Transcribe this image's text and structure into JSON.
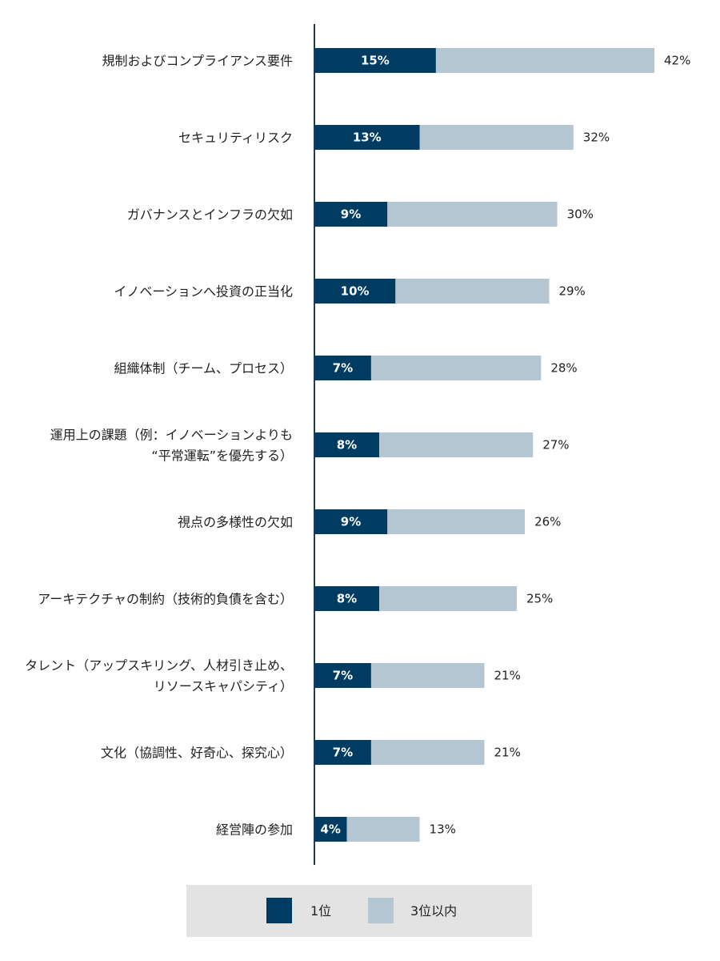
{
  "chart_data": {
    "type": "bar",
    "orientation": "horizontal",
    "categories": [
      [
        "規制およびコンプライアンス要件"
      ],
      [
        "セキュリティリスク"
      ],
      [
        "ガバナンスとインフラの欠如"
      ],
      [
        "イノベーションへ投資の正当化"
      ],
      [
        "組織体制（チーム、プロセス）"
      ],
      [
        "運用上の課題（例：イノベーションよりも",
        "“平常運転”を優先する）"
      ],
      [
        "視点の多様性の欠如"
      ],
      [
        "アーキテクチャの制約（技術的負債を含む）"
      ],
      [
        "タレント（アップスキリング、人材引き止め、",
        "リソースキャパシティ）"
      ],
      [
        "文化（協調性、好奇心、探究心）"
      ],
      [
        "経営陣の参加"
      ]
    ],
    "series": [
      {
        "name": "1位",
        "color": "#003b62",
        "values": [
          15,
          13,
          9,
          10,
          7,
          8,
          9,
          8,
          7,
          7,
          4
        ]
      },
      {
        "name": "3位以内",
        "color": "#b5c6d3",
        "values": [
          42,
          32,
          30,
          29,
          28,
          27,
          26,
          25,
          21,
          21,
          13
        ]
      }
    ],
    "value_suffix": "%",
    "xlim": [
      0,
      42
    ],
    "axis_color": "#1f3a55",
    "legend": {
      "placement": "bottom-center",
      "background": "#e3e3e3"
    }
  }
}
